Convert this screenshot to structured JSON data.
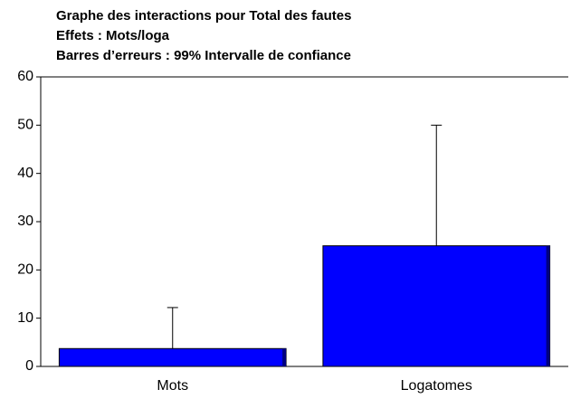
{
  "chart_data": {
    "type": "bar",
    "title": [
      "Graphe des interactions pour Total des fautes",
      "Effets : Mots/loga",
      "Barres d’erreurs : 99% Intervalle de confiance"
    ],
    "categories": [
      "Mots",
      "Logatomes"
    ],
    "values": [
      3.7,
      25
    ],
    "errors": [
      8.5,
      25
    ],
    "color": "#0000ff",
    "ylim": [
      0,
      60
    ],
    "yticks": [
      0,
      10,
      20,
      30,
      40,
      50,
      60
    ],
    "grid": false
  }
}
